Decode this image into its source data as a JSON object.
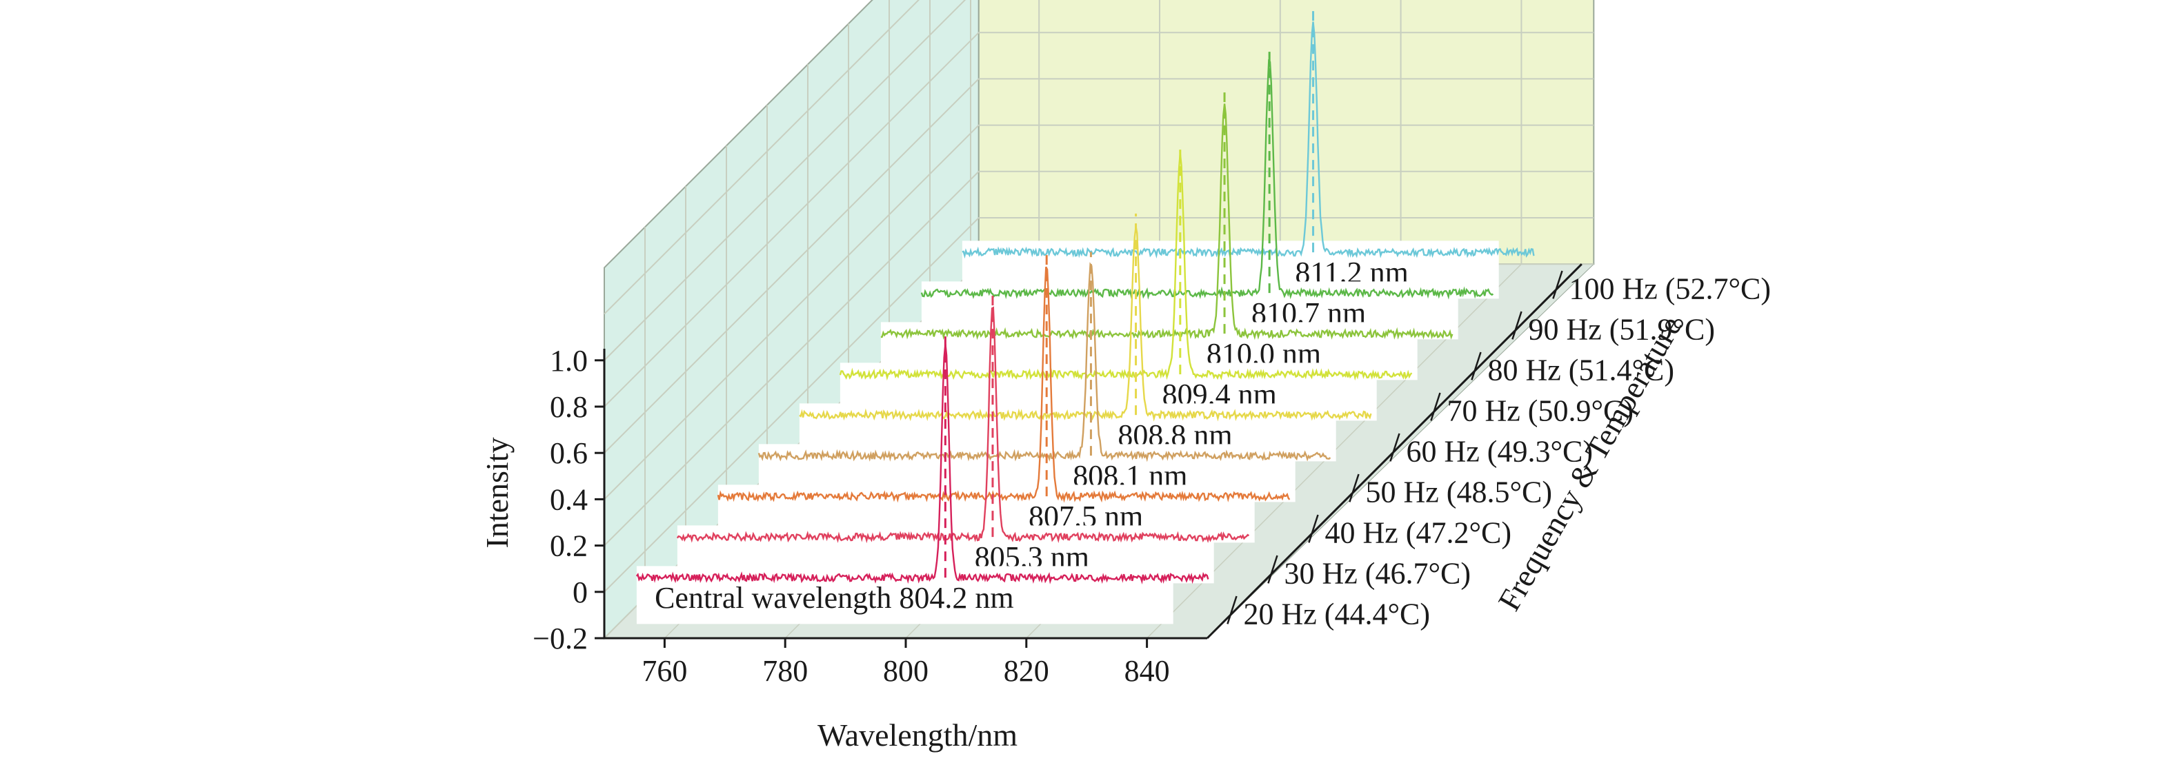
{
  "chart_data": {
    "type": "line",
    "chart_style": "3d-waterfall",
    "xlabel": "Wavelength/nm",
    "ylabel": "Intensity",
    "zlabel": "Frequency & Temperature",
    "xlim": [
      750,
      850
    ],
    "ylim": [
      -0.2,
      1.0
    ],
    "x_ticks": [
      "760",
      "780",
      "800",
      "820",
      "840"
    ],
    "y_ticks": [
      "−0.2",
      "0",
      "0.2",
      "0.4",
      "0.6",
      "0.8",
      "1.0"
    ],
    "grid": true,
    "series": [
      {
        "name": "20 Hz (44.4°C)",
        "peak_label": "Central wavelength 804.2 nm",
        "center_nm": 804.2,
        "peak": 1.0,
        "fwhm_nm": 1.4,
        "color": "#d6205a"
      },
      {
        "name": "30 Hz (46.7°C)",
        "peak_label": "805.3 nm",
        "center_nm": 805.3,
        "peak": 1.0,
        "fwhm_nm": 1.4,
        "color": "#e0405e"
      },
      {
        "name": "40 Hz (47.2°C)",
        "peak_label": "807.5 nm",
        "center_nm": 807.5,
        "peak": 1.0,
        "fwhm_nm": 1.4,
        "color": "#e47a3a"
      },
      {
        "name": "50 Hz (48.5°C)",
        "peak_label": "808.1 nm",
        "center_nm": 808.1,
        "peak": 0.83,
        "fwhm_nm": 1.5,
        "color": "#d0a060"
      },
      {
        "name": "60 Hz (49.3°C)",
        "peak_label": "808.8 nm",
        "center_nm": 808.8,
        "peak": 0.82,
        "fwhm_nm": 1.5,
        "color": "#e6d84a"
      },
      {
        "name": "70 Hz (50.9°C)",
        "peak_label": "809.4 nm",
        "center_nm": 809.4,
        "peak": 0.95,
        "fwhm_nm": 1.5,
        "color": "#d2e23a"
      },
      {
        "name": "80 Hz (51.4°C)",
        "peak_label": "810.0 nm",
        "center_nm": 810.0,
        "peak": 1.0,
        "fwhm_nm": 1.5,
        "color": "#8cc43c"
      },
      {
        "name": "90 Hz (51.9°C)",
        "peak_label": "810.7 nm",
        "center_nm": 810.7,
        "peak": 1.0,
        "fwhm_nm": 1.5,
        "color": "#5cb848"
      },
      {
        "name": "100 Hz (52.7°C)",
        "peak_label": "811.2 nm",
        "center_nm": 811.2,
        "peak": 1.0,
        "fwhm_nm": 1.5,
        "color": "#6cc8d8"
      }
    ],
    "colors": {
      "back_wall": "#eef5cf",
      "side_wall": "#d8f0e8",
      "floor": "#dde8e0",
      "grid_line": "#c8cfc0",
      "axis": "#1a1a1a"
    }
  }
}
